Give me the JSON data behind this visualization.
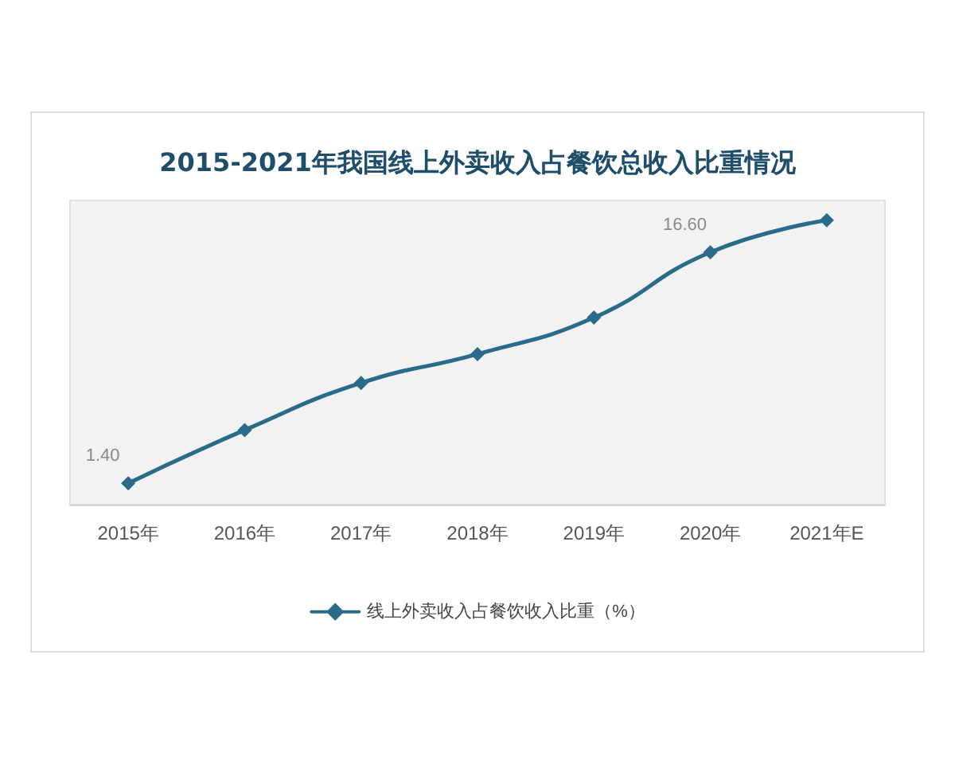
{
  "chart_data": {
    "type": "line",
    "title": "2015-2021年我国线上外卖收入占餐饮总收入比重情况",
    "categories": [
      "2015年",
      "2016年",
      "2017年",
      "2018年",
      "2019年",
      "2020年",
      "2021年E"
    ],
    "series": [
      {
        "name": "线上外卖收入占餐饮收入比重（%）",
        "color": "#2a6b8a",
        "values": [
          1.4,
          4.9,
          8.0,
          9.9,
          12.3,
          16.6,
          18.7
        ],
        "value_labels": [
          "1.40",
          null,
          null,
          null,
          null,
          "16.60",
          null
        ]
      }
    ],
    "ylim": [
      0,
      20
    ],
    "tick_labels": "x",
    "grid": false,
    "legend": "bottom",
    "marker": "diamond",
    "line_style": "solid"
  }
}
